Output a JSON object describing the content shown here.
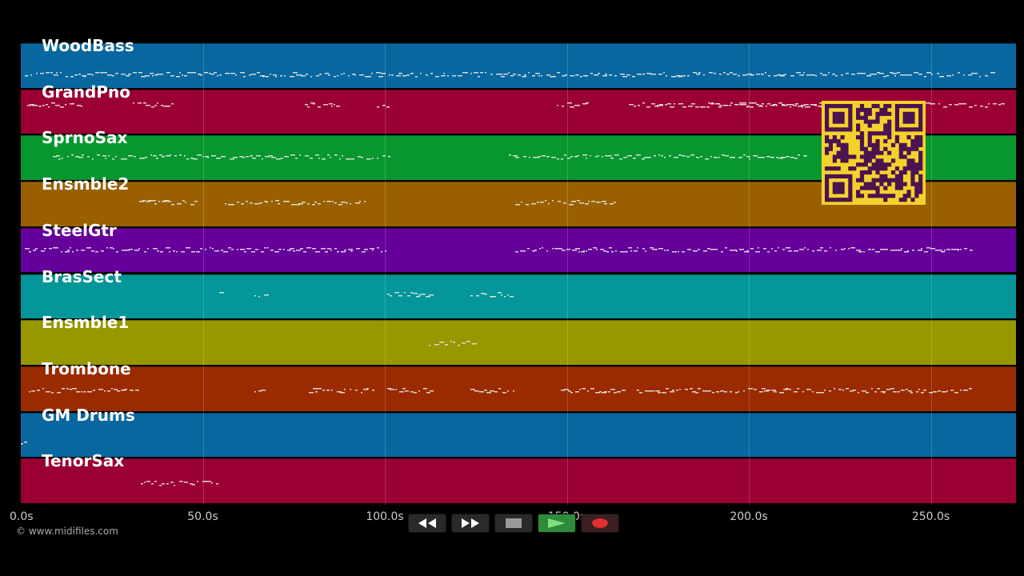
{
  "tracks": [
    {
      "name": "WoodBass",
      "color": "#08679f"
    },
    {
      "name": "GrandPno",
      "color": "#9b0034"
    },
    {
      "name": "SprnoSax",
      "color": "#08972f"
    },
    {
      "name": "Ensmble2",
      "color": "#9a6000"
    },
    {
      "name": "SteelGtr",
      "color": "#65009a"
    },
    {
      "name": "BrasSect",
      "color": "#049698"
    },
    {
      "name": "Ensmble1",
      "color": "#979700"
    },
    {
      "name": "Trombone",
      "color": "#9a2b00"
    },
    {
      "name": "GM Drums",
      "color": "#08679f"
    },
    {
      "name": "TenorSax",
      "color": "#9b0034"
    }
  ],
  "axis": {
    "unit": "s",
    "max_seconds": 273,
    "ticks": [
      {
        "value": 0,
        "label": "0.0s"
      },
      {
        "value": 50,
        "label": "50.0s"
      },
      {
        "value": 100,
        "label": "100.0s"
      },
      {
        "value": 150,
        "label": "150.0s"
      },
      {
        "value": 200,
        "label": "200.0s"
      },
      {
        "value": 250,
        "label": "250.0s"
      }
    ]
  },
  "copyright": "© www.midifiles.com",
  "transport": {
    "rewind_icon": "rewind-icon",
    "forward_icon": "fast-forward-icon",
    "stop_icon": "stop-icon",
    "play_icon": "play-icon",
    "record_icon": "record-icon"
  },
  "qr_icon": "qr-code-icon",
  "note_color": "#e8e8e8"
}
